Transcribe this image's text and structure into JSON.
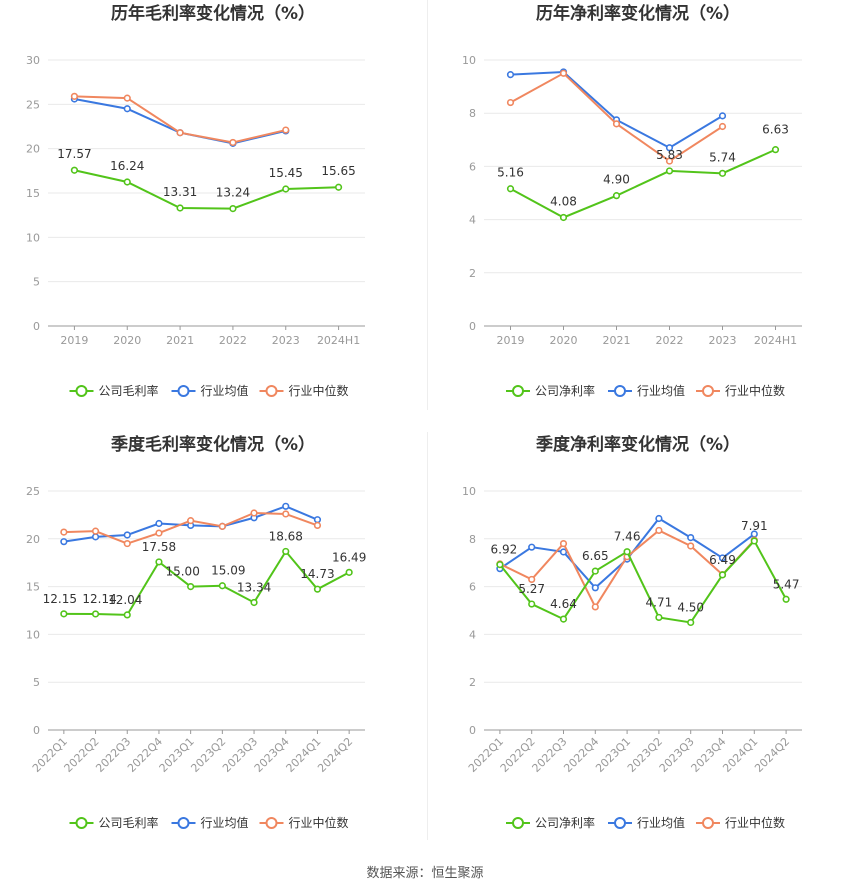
{
  "footer": {
    "source": "数据来源：恒生聚源"
  },
  "legend_labels": {
    "gross": [
      "公司毛利率",
      "行业均值",
      "行业中位数"
    ],
    "net": [
      "公司净利率",
      "行业均值",
      "行业中位数"
    ]
  },
  "colors": {
    "company": "#52c41a",
    "industry_avg": "#3a78e0",
    "industry_median": "#f0875f"
  },
  "chart_data": [
    {
      "type": "line",
      "title": "历年毛利率变化情况（%）",
      "categories": [
        "2019",
        "2020",
        "2021",
        "2022",
        "2023",
        "2024H1"
      ],
      "ylim": [
        0,
        30
      ],
      "yticks": [
        0,
        5,
        10,
        15,
        20,
        25,
        30
      ],
      "series": [
        {
          "name": "公司毛利率",
          "color": "#52c41a",
          "values": [
            17.57,
            16.24,
            13.31,
            13.24,
            15.45,
            15.65
          ],
          "labels": [
            "17.57",
            "16.24",
            "13.31",
            "13.24",
            "15.45",
            "15.65"
          ]
        },
        {
          "name": "行业均值",
          "color": "#3a78e0",
          "values": [
            25.6,
            24.5,
            21.8,
            20.6,
            22.0,
            null
          ]
        },
        {
          "name": "行业中位数",
          "color": "#f0875f",
          "values": [
            25.9,
            25.7,
            21.8,
            20.7,
            22.1,
            null
          ]
        }
      ],
      "legend": "bottom",
      "grid": true
    },
    {
      "type": "line",
      "title": "历年净利率变化情况（%）",
      "categories": [
        "2019",
        "2020",
        "2021",
        "2022",
        "2023",
        "2024H1"
      ],
      "ylim": [
        0,
        10
      ],
      "yticks": [
        0,
        2,
        4,
        6,
        8,
        10
      ],
      "series": [
        {
          "name": "公司净利率",
          "color": "#52c41a",
          "values": [
            5.16,
            4.08,
            4.9,
            5.83,
            5.74,
            6.63
          ],
          "labels": [
            "5.16",
            "4.08",
            "4.90",
            "5.83",
            "5.74",
            "6.63"
          ]
        },
        {
          "name": "行业均值",
          "color": "#3a78e0",
          "values": [
            9.45,
            9.55,
            7.75,
            6.7,
            7.9,
            null
          ]
        },
        {
          "name": "行业中位数",
          "color": "#f0875f",
          "values": [
            8.4,
            9.5,
            7.6,
            6.2,
            7.5,
            null
          ]
        }
      ],
      "legend": "bottom",
      "grid": true
    },
    {
      "type": "line",
      "title": "季度毛利率变化情况（%）",
      "categories": [
        "2022Q1",
        "2022Q2",
        "2022Q3",
        "2022Q4",
        "2023Q1",
        "2023Q2",
        "2023Q3",
        "2023Q4",
        "2024Q1",
        "2024Q2"
      ],
      "ylim": [
        0,
        25
      ],
      "yticks": [
        0,
        5,
        10,
        15,
        20,
        25
      ],
      "series": [
        {
          "name": "公司毛利率",
          "color": "#52c41a",
          "values": [
            12.15,
            12.14,
            12.04,
            17.58,
            15.0,
            15.09,
            13.34,
            18.68,
            14.73,
            16.49
          ],
          "labels": [
            "12.15",
            "12.14",
            "12.04",
            "17.58",
            "15.00",
            "15.09",
            "13.34",
            "18.68",
            "14.73",
            "16.49"
          ]
        },
        {
          "name": "行业均值",
          "color": "#3a78e0",
          "values": [
            19.7,
            20.2,
            20.4,
            21.6,
            21.4,
            21.3,
            22.2,
            23.4,
            22.0,
            null
          ]
        },
        {
          "name": "行业中位数",
          "color": "#f0875f",
          "values": [
            20.7,
            20.8,
            19.5,
            20.6,
            21.9,
            21.3,
            22.7,
            22.6,
            21.4,
            null
          ]
        }
      ],
      "legend": "bottom",
      "grid": true
    },
    {
      "type": "line",
      "title": "季度净利率变化情况（%）",
      "categories": [
        "2022Q1",
        "2022Q2",
        "2022Q3",
        "2022Q4",
        "2023Q1",
        "2023Q2",
        "2023Q3",
        "2023Q4",
        "2024Q1",
        "2024Q2"
      ],
      "ylim": [
        0,
        10
      ],
      "yticks": [
        0,
        2,
        4,
        6,
        8,
        10
      ],
      "series": [
        {
          "name": "公司净利率",
          "color": "#52c41a",
          "values": [
            6.92,
            5.27,
            4.64,
            6.65,
            7.46,
            4.71,
            4.5,
            6.49,
            7.91,
            5.47
          ],
          "labels": [
            "6.92",
            "5.27",
            "4.64",
            "6.65",
            "7.46",
            "4.71",
            "4.50",
            "6.49",
            "7.91",
            "5.47"
          ]
        },
        {
          "name": "行业均值",
          "color": "#3a78e0",
          "values": [
            6.75,
            7.65,
            7.45,
            5.95,
            7.15,
            8.85,
            8.05,
            7.2,
            8.2,
            null
          ]
        },
        {
          "name": "行业中位数",
          "color": "#f0875f",
          "values": [
            6.95,
            6.3,
            7.8,
            5.15,
            7.25,
            8.35,
            7.7,
            6.5,
            7.95,
            null
          ]
        }
      ],
      "legend": "bottom",
      "grid": true
    }
  ]
}
